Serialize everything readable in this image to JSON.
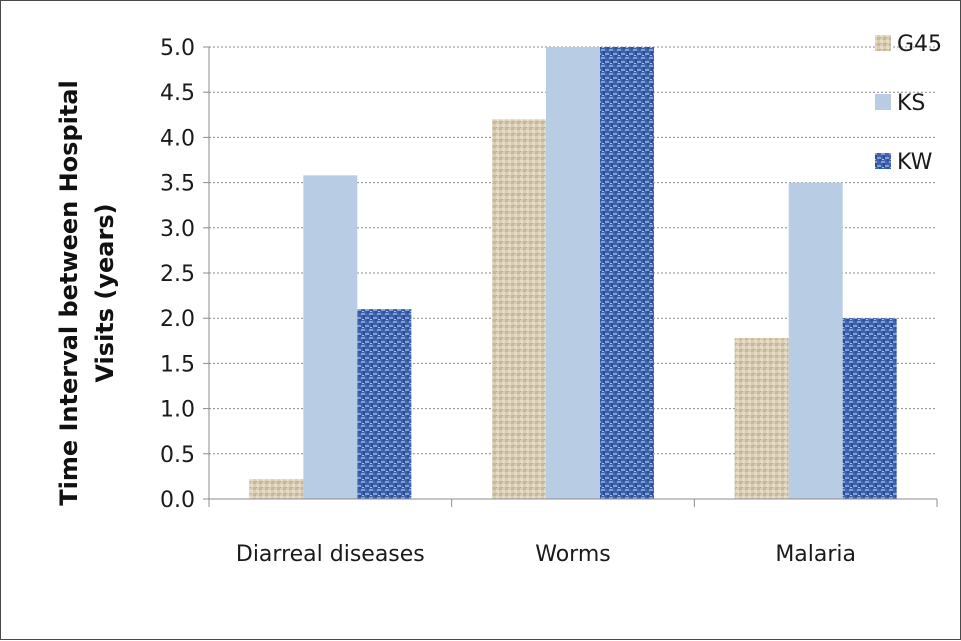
{
  "chart_data": {
    "type": "bar",
    "title": "",
    "xlabel": "",
    "ylabel": "Time Interval between Hospital Visits (years)",
    "ylabel_lines": [
      "Time Interval between Hospital",
      "Visits (years)"
    ],
    "categories": [
      "Diarreal diseases",
      "Worms",
      "Malaria"
    ],
    "series": [
      {
        "name": "G45",
        "values": [
          0.22,
          4.2,
          1.78
        ],
        "color": "#d6c9b0",
        "pattern": "burlap"
      },
      {
        "name": "KS",
        "values": [
          3.58,
          5.0,
          3.5
        ],
        "color": "#b8cce4",
        "pattern": "solid"
      },
      {
        "name": "KW",
        "values": [
          2.1,
          5.0,
          2.0
        ],
        "color": "#4f73b8",
        "pattern": "weave"
      }
    ],
    "ylim": [
      0,
      5.0
    ],
    "ytick_step": 0.5,
    "ytick_labels": [
      "0.0",
      "0.5",
      "1.0",
      "1.5",
      "2.0",
      "2.5",
      "3.0",
      "3.5",
      "4.0",
      "4.5",
      "5.0"
    ],
    "grid": true,
    "legend_position": "top-right"
  }
}
